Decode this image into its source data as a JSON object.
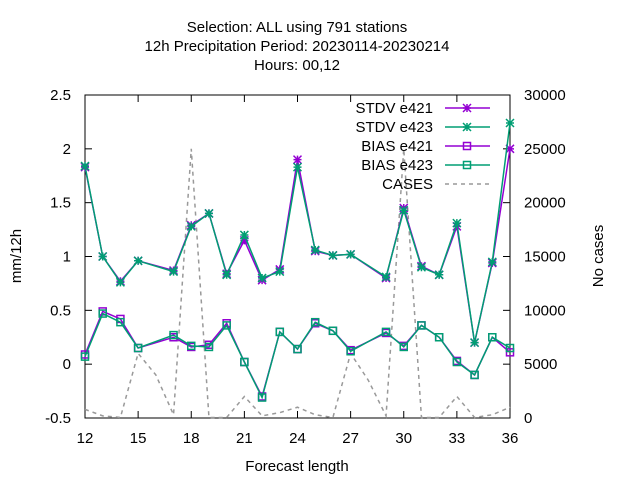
{
  "chart_data": {
    "type": "line",
    "title_lines": [
      "Selection: ALL using   791 stations",
      "12h Precipitation   Period: 20230114-20230214",
      "Hours:  00,12"
    ],
    "xlabel": "Forecast length",
    "ylabel": "mm/12h",
    "y2label": "No cases",
    "xlim": [
      12,
      36
    ],
    "ylim": [
      -0.5,
      2.5
    ],
    "y2lim": [
      0,
      30000
    ],
    "x_ticks": [
      12,
      15,
      18,
      21,
      24,
      27,
      30,
      33,
      36
    ],
    "x_tick_labels": [
      "12",
      "15",
      "18",
      "21",
      "24",
      "27",
      "30",
      "33",
      "36"
    ],
    "y_ticks": [
      -0.5,
      0,
      0.5,
      1,
      1.5,
      2,
      2.5
    ],
    "y_tick_labels": [
      "-0.5",
      "0",
      "0.5",
      "1",
      "1.5",
      "2",
      "2.5"
    ],
    "y2_ticks": [
      0,
      5000,
      10000,
      15000,
      20000,
      25000,
      30000
    ],
    "y2_tick_labels": [
      "0",
      "5000",
      "10000",
      "15000",
      "20000",
      "25000",
      "30000"
    ],
    "grid": false,
    "legend_position": "top-right",
    "x": [
      12,
      13,
      14,
      15,
      17,
      18,
      19,
      20,
      21,
      22,
      23,
      24,
      25,
      26,
      27,
      29,
      30,
      31,
      32,
      33,
      34,
      35,
      36
    ],
    "series": [
      {
        "name": "STDV e421",
        "axis": "y",
        "marker": "star",
        "color": "#9400d3",
        "values": [
          1.83,
          1.0,
          0.77,
          0.96,
          0.87,
          1.29,
          1.4,
          0.84,
          1.15,
          0.78,
          0.88,
          1.9,
          1.05,
          1.01,
          1.02,
          0.8,
          1.45,
          0.91,
          0.83,
          1.28,
          0.2,
          0.94,
          2.0
        ]
      },
      {
        "name": "STDV e423",
        "axis": "y",
        "marker": "star",
        "color": "#009e73",
        "values": [
          1.84,
          1.0,
          0.76,
          0.96,
          0.86,
          1.28,
          1.4,
          0.83,
          1.2,
          0.8,
          0.86,
          1.83,
          1.06,
          1.01,
          1.02,
          0.81,
          1.43,
          0.9,
          0.83,
          1.31,
          0.2,
          0.95,
          2.24
        ]
      },
      {
        "name": "BIAS e421",
        "axis": "y",
        "marker": "square",
        "color": "#9400d3",
        "values": [
          0.09,
          0.49,
          0.42,
          0.15,
          0.25,
          0.16,
          0.18,
          0.38,
          0.02,
          -0.3,
          0.3,
          0.14,
          0.38,
          0.31,
          0.13,
          0.29,
          0.17,
          0.36,
          0.25,
          0.03,
          -0.1,
          0.25,
          0.11
        ]
      },
      {
        "name": "BIAS e423",
        "axis": "y",
        "marker": "square",
        "color": "#009e73",
        "values": [
          0.07,
          0.47,
          0.39,
          0.15,
          0.27,
          0.17,
          0.16,
          0.36,
          0.02,
          -0.31,
          0.3,
          0.14,
          0.39,
          0.31,
          0.12,
          0.3,
          0.16,
          0.36,
          0.25,
          0.02,
          -0.1,
          0.25,
          0.15
        ]
      },
      {
        "name": "CASES",
        "axis": "y2",
        "marker": "none",
        "color": "#999999",
        "dashed": true,
        "x": [
          12,
          13,
          14,
          15,
          16,
          17,
          18,
          19,
          20,
          21,
          22,
          23,
          24,
          25,
          26,
          27,
          28,
          29,
          30,
          31,
          32,
          33,
          34,
          35,
          36
        ],
        "values": [
          800,
          200,
          50,
          6000,
          4000,
          300,
          25000,
          50,
          50,
          2000,
          200,
          500,
          1000,
          300,
          50,
          6000,
          3500,
          200,
          25000,
          50,
          50,
          2000,
          50,
          300,
          1000
        ]
      }
    ]
  }
}
